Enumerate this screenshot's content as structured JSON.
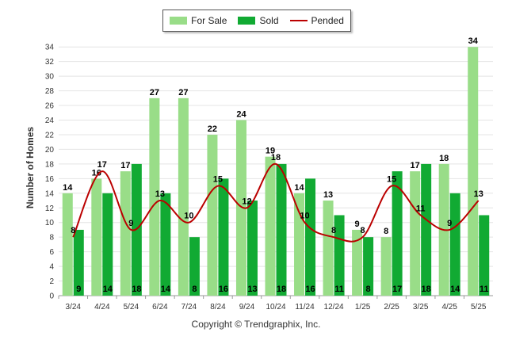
{
  "chart_data": {
    "type": "bar",
    "categories": [
      "3/24",
      "4/24",
      "5/24",
      "6/24",
      "7/24",
      "8/24",
      "9/24",
      "10/24",
      "11/24",
      "12/24",
      "1/25",
      "2/25",
      "3/25",
      "4/25",
      "5/25"
    ],
    "series": [
      {
        "name": "For Sale",
        "type": "bar",
        "color": "#99dd88",
        "values": [
          14,
          16,
          17,
          27,
          27,
          22,
          24,
          19,
          14,
          13,
          9,
          8,
          17,
          18,
          34
        ]
      },
      {
        "name": "Sold",
        "type": "bar",
        "color": "#11aa33",
        "values": [
          9,
          14,
          18,
          14,
          8,
          16,
          13,
          18,
          16,
          11,
          8,
          17,
          18,
          14,
          11
        ]
      },
      {
        "name": "Pended",
        "type": "line",
        "color": "#bb0000",
        "values": [
          8,
          17,
          9,
          13,
          10,
          15,
          12,
          18,
          10,
          8,
          8,
          15,
          11,
          9,
          13
        ]
      }
    ],
    "ylabel": "Number of Homes",
    "xlabel": "",
    "ylim": [
      0,
      35
    ],
    "yticks": [
      0,
      2,
      4,
      6,
      8,
      10,
      12,
      14,
      16,
      18,
      20,
      22,
      24,
      26,
      28,
      30,
      32,
      34
    ],
    "grid": true,
    "legend_position": "top-center"
  },
  "footer": "Copyright © Trendgraphix, Inc."
}
